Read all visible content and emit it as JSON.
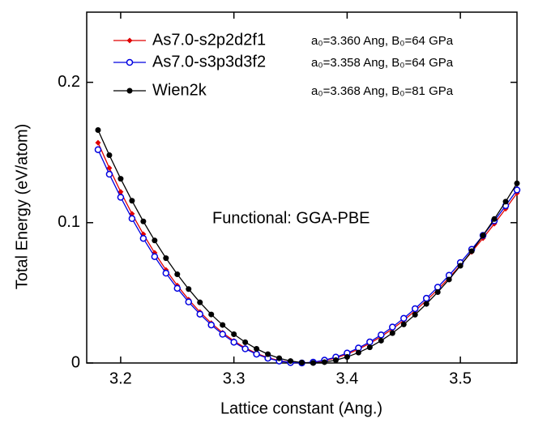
{
  "chart_data": {
    "type": "line",
    "xlabel": "Lattice constant (Ang.)",
    "ylabel": "Total Energy (eV/atom)",
    "annotation": "Functional: GGA-PBE",
    "xlim": [
      3.17,
      3.55
    ],
    "ylim": [
      0,
      0.25
    ],
    "xticks": [
      3.2,
      3.3,
      3.4,
      3.5
    ],
    "yticks": [
      0,
      0.1,
      0.2
    ],
    "x": [
      3.18,
      3.19,
      3.2,
      3.21,
      3.22,
      3.23,
      3.24,
      3.25,
      3.26,
      3.27,
      3.28,
      3.29,
      3.3,
      3.31,
      3.32,
      3.33,
      3.34,
      3.35,
      3.36,
      3.37,
      3.38,
      3.39,
      3.4,
      3.41,
      3.42,
      3.43,
      3.44,
      3.45,
      3.46,
      3.47,
      3.48,
      3.49,
      3.5,
      3.51,
      3.52,
      3.53,
      3.54,
      3.55
    ],
    "series": [
      {
        "name": "As7.0-s2p2d2f1",
        "note": "a₀=3.360 Ang, B₀=64 GPa",
        "color": "#e00000",
        "marker": "diamond",
        "values": [
          0.157,
          0.1389,
          0.122,
          0.1063,
          0.0918,
          0.0785,
          0.0663,
          0.0552,
          0.0452,
          0.0363,
          0.0284,
          0.0216,
          0.0157,
          0.0108,
          0.0068,
          0.0038,
          0.0017,
          0.0004,
          0.0,
          0.0004,
          0.0016,
          0.0036,
          0.0063,
          0.0098,
          0.014,
          0.0188,
          0.0243,
          0.0304,
          0.0372,
          0.0445,
          0.0523,
          0.0607,
          0.0697,
          0.0791,
          0.0889,
          0.0992,
          0.1099,
          0.121
        ]
      },
      {
        "name": "As7.0-s3p3d3f2",
        "note": "a₀=3.358 Ang, B₀=64 GPa",
        "color": "#0000e0",
        "marker": "open-circle",
        "values": [
          0.152,
          0.1345,
          0.1181,
          0.1029,
          0.0888,
          0.0758,
          0.064,
          0.0532,
          0.0435,
          0.0348,
          0.0271,
          0.0205,
          0.0148,
          0.0101,
          0.0063,
          0.0034,
          0.0014,
          0.0003,
          0.0,
          0.0006,
          0.002,
          0.0042,
          0.0071,
          0.0107,
          0.015,
          0.02,
          0.0256,
          0.0318,
          0.0387,
          0.0461,
          0.054,
          0.0625,
          0.0715,
          0.081,
          0.0909,
          0.1013,
          0.1121,
          0.1233
        ]
      },
      {
        "name": "Wien2k",
        "note": "a₀=3.368 Ang, B₀=81 GPa",
        "color": "#000000",
        "marker": "circle",
        "values": [
          0.166,
          0.1481,
          0.1313,
          0.1156,
          0.1009,
          0.0873,
          0.0747,
          0.0632,
          0.0527,
          0.0432,
          0.0346,
          0.0271,
          0.0205,
          0.0148,
          0.0101,
          0.0063,
          0.0034,
          0.0014,
          0.0003,
          0.0,
          0.0006,
          0.002,
          0.0043,
          0.0074,
          0.0112,
          0.0159,
          0.0213,
          0.0275,
          0.0344,
          0.0421,
          0.0505,
          0.0595,
          0.0693,
          0.0797,
          0.0909,
          0.1026,
          0.115,
          0.128
        ]
      }
    ]
  }
}
